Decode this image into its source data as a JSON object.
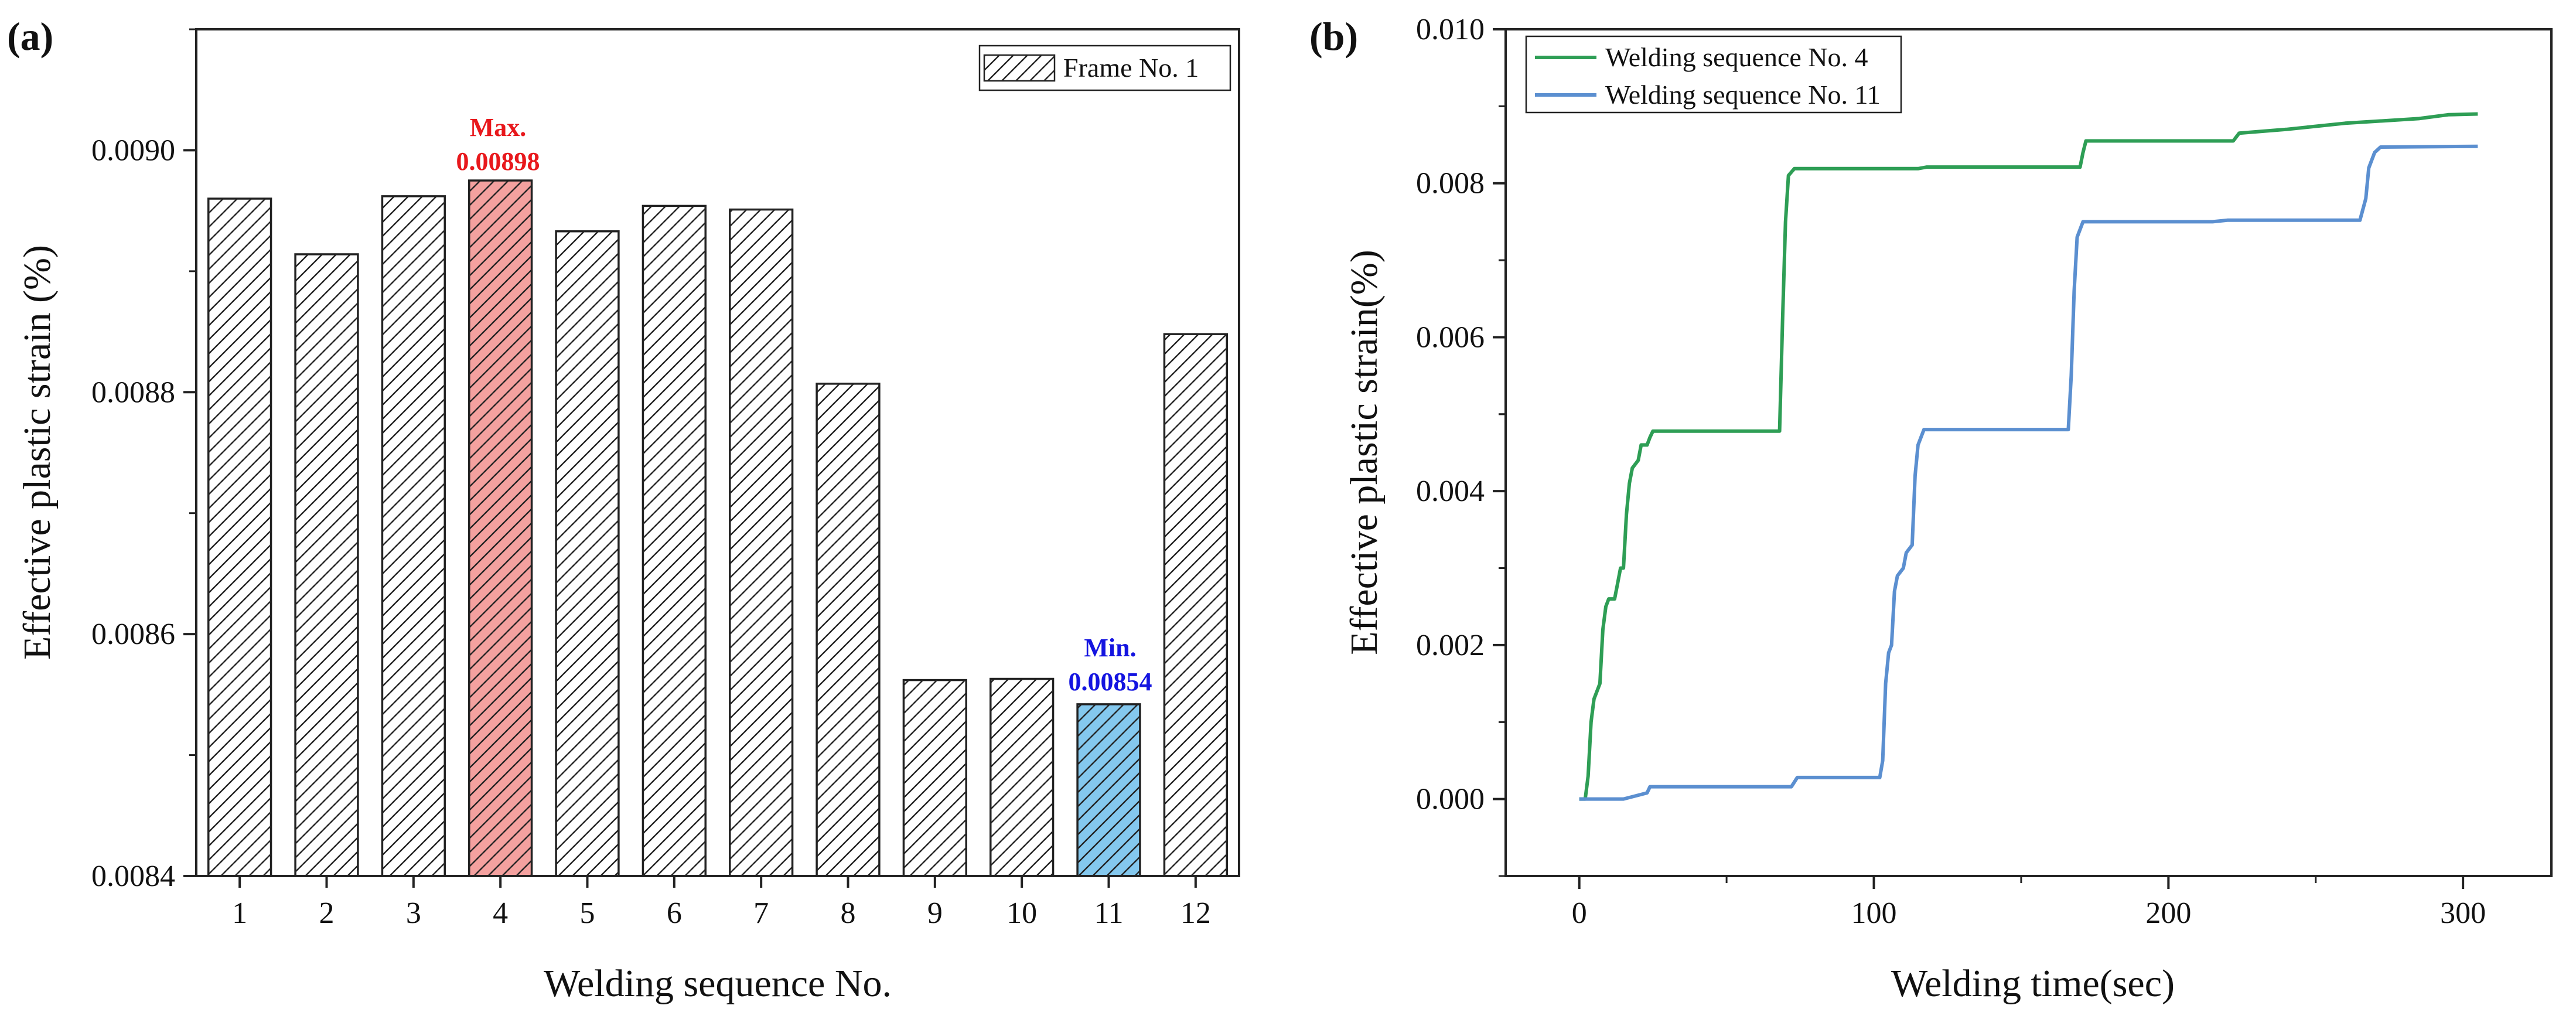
{
  "chart_data": [
    {
      "panel_label": "(a)",
      "type": "bar",
      "title": "",
      "xlabel": "Welding sequence No.",
      "ylabel": "Effective plastic strain (%)",
      "categories": [
        "1",
        "2",
        "3",
        "4",
        "5",
        "6",
        "7",
        "8",
        "9",
        "10",
        "11",
        "12"
      ],
      "values": [
        0.00896,
        0.008914,
        0.008962,
        0.008975,
        0.008933,
        0.008954,
        0.008951,
        0.008807,
        0.008562,
        0.008563,
        0.008542,
        0.008848
      ],
      "ylim": [
        0.0084,
        0.0091
      ],
      "yticks": [
        "0.0084",
        "0.0086",
        "0.0088",
        "0.0090"
      ],
      "ytick_values": [
        0.0084,
        0.0086,
        0.0088,
        0.009
      ],
      "legend": {
        "label": "Frame No. 1",
        "position": "top-right"
      },
      "highlights": [
        {
          "category": "4",
          "color": "#f4a19f",
          "label_top": "Max.",
          "label_value": "0.00898",
          "label_color": "#e8181c"
        },
        {
          "category": "11",
          "color": "#84c8ee",
          "label_top": "Min.",
          "label_value": "0.00854",
          "label_color": "#1414e0"
        }
      ],
      "grid": false
    },
    {
      "panel_label": "(b)",
      "type": "line",
      "title": "",
      "xlabel": "Welding time(sec)",
      "ylabel": "Effective plastic strain(%)",
      "xlim": [
        -25,
        330
      ],
      "ylim": [
        -0.001,
        0.01
      ],
      "xticks": [
        "0",
        "100",
        "200",
        "300"
      ],
      "xtick_values": [
        0,
        100,
        200,
        300
      ],
      "yticks": [
        "0.000",
        "0.002",
        "0.004",
        "0.006",
        "0.008",
        "0.010"
      ],
      "ytick_values": [
        0.0,
        0.002,
        0.004,
        0.006,
        0.008,
        0.01
      ],
      "legend_position": "top-left",
      "grid": false,
      "series": [
        {
          "name": "Welding sequence No. 4",
          "color": "#2e9e55",
          "points": [
            [
              0,
              0
            ],
            [
              2,
              0
            ],
            [
              3,
              0.0003
            ],
            [
              4,
              0.001
            ],
            [
              5,
              0.0013
            ],
            [
              7,
              0.0015
            ],
            [
              8,
              0.0022
            ],
            [
              9,
              0.0025
            ],
            [
              10,
              0.0026
            ],
            [
              12,
              0.0026
            ],
            [
              13,
              0.0028
            ],
            [
              14,
              0.003
            ],
            [
              15,
              0.003
            ],
            [
              16,
              0.0037
            ],
            [
              17,
              0.0041
            ],
            [
              18,
              0.0043
            ],
            [
              20,
              0.0044
            ],
            [
              21,
              0.0046
            ],
            [
              23,
              0.0046
            ],
            [
              24,
              0.0047
            ],
            [
              25,
              0.00478
            ],
            [
              68,
              0.00478
            ],
            [
              69,
              0.0062
            ],
            [
              70,
              0.0075
            ],
            [
              71,
              0.0081
            ],
            [
              73,
              0.00819
            ],
            [
              115,
              0.00819
            ],
            [
              118,
              0.00821
            ],
            [
              170,
              0.00821
            ],
            [
              171,
              0.0084
            ],
            [
              172,
              0.00855
            ],
            [
              222,
              0.00855
            ],
            [
              224,
              0.00865
            ],
            [
              240,
              0.0087
            ],
            [
              260,
              0.00878
            ],
            [
              285,
              0.00884
            ],
            [
              295,
              0.00889
            ],
            [
              305,
              0.0089
            ]
          ]
        },
        {
          "name": "Welding sequence No. 11",
          "color": "#5b8fd0",
          "points": [
            [
              0,
              0
            ],
            [
              15,
              0
            ],
            [
              20,
              5e-05
            ],
            [
              23,
              8e-05
            ],
            [
              24,
              0.00016
            ],
            [
              72,
              0.00016
            ],
            [
              74,
              0.00028
            ],
            [
              102,
              0.00028
            ],
            [
              103,
              0.0005
            ],
            [
              104,
              0.0015
            ],
            [
              105,
              0.0019
            ],
            [
              106,
              0.002
            ],
            [
              107,
              0.0027
            ],
            [
              108,
              0.0029
            ],
            [
              110,
              0.003
            ],
            [
              111,
              0.0032
            ],
            [
              113,
              0.0033
            ],
            [
              114,
              0.0042
            ],
            [
              115,
              0.0046
            ],
            [
              117,
              0.0048
            ],
            [
              166,
              0.0048
            ],
            [
              167,
              0.0055
            ],
            [
              168,
              0.0066
            ],
            [
              169,
              0.0073
            ],
            [
              171,
              0.0075
            ],
            [
              215,
              0.0075
            ],
            [
              220,
              0.00752
            ],
            [
              265,
              0.00752
            ],
            [
              267,
              0.0078
            ],
            [
              268,
              0.0082
            ],
            [
              270,
              0.0084
            ],
            [
              272,
              0.00847
            ],
            [
              305,
              0.00848
            ]
          ]
        }
      ]
    }
  ]
}
